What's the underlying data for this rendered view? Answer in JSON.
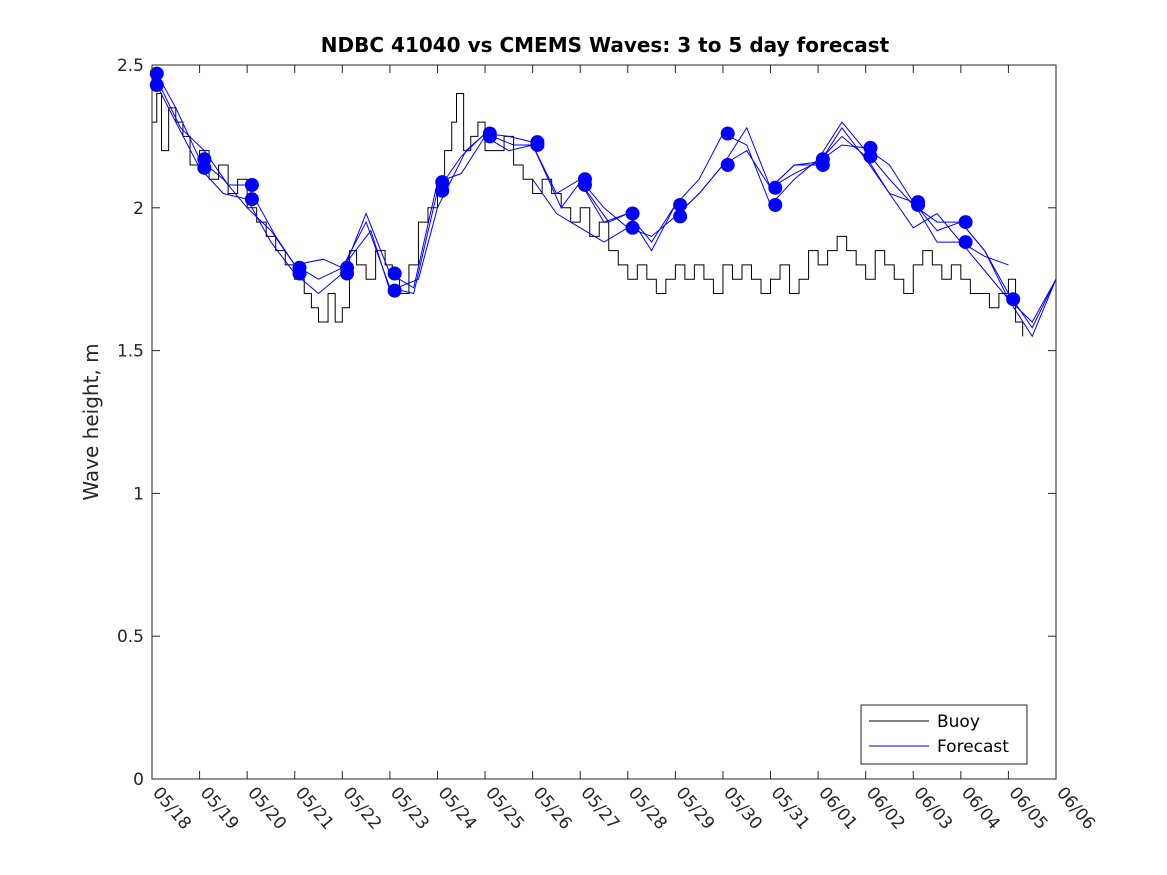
{
  "chart_data": {
    "type": "line",
    "title": "NDBC 41040 vs CMEMS Waves: 3 to 5 day forecast",
    "xlabel": "",
    "ylabel": "Wave height, m",
    "xlim": [
      "05/18",
      "06/06"
    ],
    "ylim": [
      0,
      2.5
    ],
    "x_ticks": [
      "05/18",
      "05/19",
      "05/20",
      "05/21",
      "05/22",
      "05/23",
      "05/24",
      "05/25",
      "05/26",
      "05/27",
      "05/28",
      "05/29",
      "05/30",
      "05/31",
      "06/01",
      "06/02",
      "06/03",
      "06/04",
      "06/05",
      "06/06"
    ],
    "y_ticks": [
      "0",
      "0.5",
      "1",
      "1.5",
      "2",
      "2.5"
    ],
    "grid": false,
    "legend_position": "bottom-right",
    "colors": {
      "buoy": "#000000",
      "forecast": "#0000ff"
    },
    "series": [
      {
        "name": "Buoy",
        "x_day": [
          0.0,
          0.1,
          0.2,
          0.35,
          0.5,
          0.65,
          0.8,
          1.0,
          1.2,
          1.4,
          1.6,
          1.8,
          2.0,
          2.2,
          2.4,
          2.6,
          2.8,
          3.0,
          3.2,
          3.35,
          3.5,
          3.7,
          3.85,
          4.0,
          4.15,
          4.3,
          4.5,
          4.7,
          4.9,
          5.05,
          5.2,
          5.4,
          5.6,
          5.8,
          6.0,
          6.15,
          6.3,
          6.4,
          6.55,
          6.7,
          6.85,
          7.0,
          7.2,
          7.4,
          7.6,
          7.8,
          8.0,
          8.2,
          8.4,
          8.6,
          8.8,
          9.0,
          9.2,
          9.4,
          9.6,
          9.8,
          10.0,
          10.2,
          10.4,
          10.6,
          10.8,
          11.0,
          11.2,
          11.4,
          11.6,
          11.8,
          12.0,
          12.2,
          12.4,
          12.6,
          12.8,
          13.0,
          13.2,
          13.4,
          13.6,
          13.8,
          14.0,
          14.2,
          14.4,
          14.6,
          14.8,
          15.0,
          15.2,
          15.4,
          15.6,
          15.8,
          16.0,
          16.2,
          16.4,
          16.6,
          16.8,
          17.0,
          17.2,
          17.4,
          17.6,
          17.8,
          18.0,
          18.15,
          18.3
        ],
        "values": [
          2.3,
          2.4,
          2.2,
          2.35,
          2.3,
          2.25,
          2.15,
          2.2,
          2.1,
          2.15,
          2.05,
          2.1,
          2.0,
          1.95,
          1.9,
          1.85,
          1.8,
          1.75,
          1.7,
          1.65,
          1.6,
          1.7,
          1.6,
          1.65,
          1.85,
          1.8,
          1.75,
          1.85,
          1.8,
          1.75,
          1.7,
          1.8,
          1.95,
          2.0,
          2.1,
          2.2,
          2.3,
          2.4,
          2.2,
          2.25,
          2.3,
          2.2,
          2.2,
          2.25,
          2.15,
          2.1,
          2.05,
          2.1,
          2.05,
          2.0,
          1.95,
          2.0,
          1.9,
          1.95,
          1.85,
          1.8,
          1.75,
          1.8,
          1.75,
          1.7,
          1.75,
          1.8,
          1.75,
          1.8,
          1.75,
          1.7,
          1.8,
          1.75,
          1.8,
          1.75,
          1.7,
          1.75,
          1.8,
          1.7,
          1.75,
          1.85,
          1.8,
          1.85,
          1.9,
          1.85,
          1.8,
          1.75,
          1.85,
          1.8,
          1.75,
          1.7,
          1.8,
          1.85,
          1.8,
          1.75,
          1.8,
          1.75,
          1.7,
          1.7,
          1.65,
          1.7,
          1.75,
          1.6,
          1.55
        ]
      },
      {
        "name": "Forecast",
        "runs": [
          {
            "x_day": [
              0.1,
              0.5,
              1.0,
              1.5,
              2.0,
              2.5,
              3.0,
              3.5,
              4.0,
              4.5,
              5.0,
              5.5,
              6.0,
              6.5,
              7.0,
              7.5,
              8.0
            ],
            "values": [
              2.47,
              2.35,
              2.17,
              2.1,
              2.0,
              1.92,
              1.8,
              1.75,
              1.79,
              1.95,
              1.72,
              1.7,
              2.06,
              2.18,
              2.26,
              2.25,
              2.23
            ]
          },
          {
            "x_day": [
              0.1,
              0.5,
              1.0,
              1.5,
              2.0,
              2.5,
              3.0,
              3.5,
              4.0,
              4.5,
              5.0,
              5.5,
              6.0,
              6.5,
              7.0,
              7.5,
              8.0,
              8.5,
              9.0,
              9.5,
              10.0
            ],
            "values": [
              2.43,
              2.3,
              2.14,
              2.05,
              2.03,
              1.88,
              1.77,
              1.7,
              1.77,
              1.98,
              1.77,
              1.72,
              2.09,
              2.12,
              2.25,
              2.2,
              2.22,
              2.05,
              2.1,
              2.0,
              1.93
            ]
          },
          {
            "x_day": [
              0.1,
              0.6,
              1.1,
              1.6,
              2.0,
              2.6,
              3.0,
              3.6,
              4.0,
              4.6,
              5.0,
              5.6,
              6.0,
              6.6,
              7.0,
              7.6,
              8.0,
              8.6,
              9.0,
              9.6,
              10.0,
              10.5,
              11.0
            ],
            "values": [
              2.45,
              2.28,
              2.2,
              2.08,
              2.08,
              1.9,
              1.8,
              1.82,
              1.79,
              1.92,
              1.71,
              1.75,
              2.0,
              2.2,
              2.26,
              2.22,
              2.22,
              2.0,
              2.09,
              1.95,
              1.98,
              1.85,
              2.01
            ]
          },
          {
            "x_day": [
              8.0,
              8.5,
              9.0,
              9.5,
              10.0,
              10.5,
              11.0,
              11.5,
              12.0,
              12.5,
              13.0,
              13.5,
              14.0,
              14.5,
              15.0,
              15.5,
              16.0,
              16.5,
              17.0,
              17.5,
              18.0,
              18.5,
              19.0
            ],
            "values": [
              2.1,
              1.98,
              1.93,
              1.88,
              1.93,
              1.9,
              1.97,
              2.05,
              2.15,
              2.2,
              2.07,
              2.12,
              2.16,
              2.22,
              2.21,
              2.15,
              2.02,
              1.88,
              1.88,
              1.78,
              1.68,
              1.55,
              1.75
            ]
          },
          {
            "x_day": [
              9.0,
              9.5,
              10.0,
              10.5,
              11.0,
              11.5,
              12.0,
              12.5,
              13.0,
              13.5,
              14.0,
              14.5,
              15.0,
              15.5,
              16.0,
              16.5,
              17.0,
              17.5,
              18.0,
              18.5,
              19.0
            ],
            "values": [
              2.09,
              1.95,
              1.98,
              1.88,
              2.01,
              2.1,
              2.26,
              2.22,
              2.01,
              2.1,
              2.17,
              2.3,
              2.2,
              2.1,
              2.01,
              1.95,
              1.95,
              1.85,
              1.68,
              1.6,
              1.75
            ]
          },
          {
            "x_day": [
              11.0,
              11.5,
              12.0,
              12.5,
              13.0,
              13.5,
              14.0,
              14.5,
              15.0,
              15.5,
              16.0,
              16.5,
              17.0,
              17.5,
              18.0
            ],
            "values": [
              1.97,
              2.05,
              2.15,
              2.28,
              2.07,
              2.15,
              2.16,
              2.25,
              2.18,
              2.05,
              1.93,
              1.98,
              1.88,
              1.83,
              1.8
            ]
          },
          {
            "x_day": [
              13.0,
              13.5,
              14.0,
              14.5,
              15.0,
              15.5,
              16.0,
              16.5,
              17.0,
              17.5,
              18.0,
              18.5,
              19.0
            ],
            "values": [
              2.07,
              2.15,
              2.15,
              2.28,
              2.17,
              2.05,
              2.02,
              1.92,
              1.95,
              1.85,
              1.7,
              1.58,
              1.75
            ]
          }
        ],
        "markers": {
          "x_day": [
            0.1,
            0.1,
            1.1,
            1.1,
            2.1,
            2.1,
            3.1,
            3.1,
            4.1,
            4.1,
            5.1,
            5.1,
            6.1,
            6.1,
            7.1,
            7.1,
            8.1,
            8.1,
            9.1,
            9.1,
            10.1,
            10.1,
            11.1,
            11.1,
            12.1,
            12.1,
            13.1,
            13.1,
            14.1,
            14.1,
            15.1,
            15.1,
            16.1,
            16.1,
            17.1,
            17.1,
            18.1
          ],
          "values": [
            2.47,
            2.43,
            2.17,
            2.14,
            2.08,
            2.03,
            1.79,
            1.77,
            1.79,
            1.77,
            1.77,
            1.71,
            2.09,
            2.06,
            2.26,
            2.25,
            2.23,
            2.22,
            2.1,
            2.08,
            1.98,
            1.93,
            2.01,
            1.97,
            2.26,
            2.15,
            2.07,
            2.01,
            2.17,
            2.15,
            2.21,
            2.18,
            2.02,
            2.01,
            1.95,
            1.88,
            1.68
          ]
        }
      }
    ]
  }
}
